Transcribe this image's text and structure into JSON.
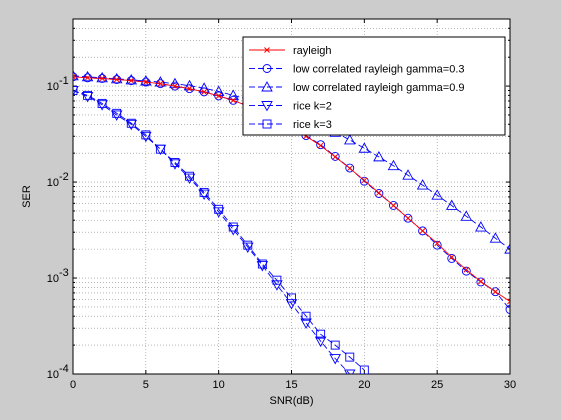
{
  "chart_data": {
    "type": "line",
    "xlabel": "SNR(dB)",
    "ylabel": "SER",
    "xlim": [
      0,
      30
    ],
    "ylim": [
      0.0001,
      0.5
    ],
    "yscale": "log",
    "grid": "on (major and minor, dotted)",
    "legend_location": "top-right",
    "x_ticks": [
      0,
      5,
      10,
      15,
      20,
      25,
      30
    ],
    "x_tick_labels": [
      "0",
      "5",
      "10",
      "15",
      "20",
      "25",
      "30"
    ],
    "y_ticks": [
      0.0001,
      0.001,
      0.01,
      0.1
    ],
    "y_tick_labels": [
      {
        "base": "10",
        "exp": "-4"
      },
      {
        "base": "10",
        "exp": "-3"
      },
      {
        "base": "10",
        "exp": "-2"
      },
      {
        "base": "10",
        "exp": "-1"
      }
    ],
    "series": [
      {
        "name": "rayleigh",
        "color": "#ff0000",
        "line_style": "solid",
        "marker": "x",
        "x": [
          0,
          1,
          2,
          3,
          4,
          5,
          6,
          7,
          8,
          9,
          10,
          11,
          12,
          13,
          14,
          15,
          16,
          17,
          18,
          19,
          20,
          21,
          22,
          23,
          24,
          25,
          26,
          27,
          28,
          29,
          30
        ],
        "y": [
          0.125,
          0.122,
          0.12,
          0.117,
          0.114,
          0.11,
          0.106,
          0.1,
          0.094,
          0.087,
          0.079,
          0.071,
          0.062,
          0.053,
          0.045,
          0.0375,
          0.03,
          0.024,
          0.0183,
          0.0139,
          0.0104,
          0.0077,
          0.0057,
          0.0042,
          0.0031,
          0.0023,
          0.00165,
          0.00122,
          0.00092,
          0.00072,
          0.00057
        ]
      },
      {
        "name": "low correlated rayleigh gamma=0.3",
        "color": "#0000ff",
        "line_style": "dashed",
        "marker": "o",
        "x": [
          0,
          1,
          2,
          3,
          4,
          5,
          6,
          7,
          8,
          9,
          10,
          11,
          12,
          13,
          14,
          15,
          16,
          17,
          18,
          19,
          20,
          21,
          22,
          23,
          24,
          25,
          26,
          27,
          28,
          29,
          30
        ],
        "y": [
          0.125,
          0.122,
          0.12,
          0.117,
          0.114,
          0.11,
          0.106,
          0.1,
          0.094,
          0.087,
          0.079,
          0.071,
          0.062,
          0.053,
          0.045,
          0.0375,
          0.0305,
          0.0245,
          0.0185,
          0.014,
          0.0102,
          0.0076,
          0.0057,
          0.0042,
          0.0031,
          0.0022,
          0.0016,
          0.00118,
          0.00091,
          0.00072,
          0.00047
        ]
      },
      {
        "name": "low correlated rayleigh gamma=0.9",
        "color": "#0000ff",
        "line_style": "dashed",
        "marker": "^",
        "x": [
          0,
          1,
          2,
          3,
          4,
          5,
          6,
          7,
          8,
          9,
          10,
          11,
          12,
          13,
          14,
          15,
          16,
          17,
          18,
          19,
          20,
          21,
          22,
          23,
          24,
          25,
          26,
          27,
          28,
          29,
          30
        ],
        "y": [
          0.128,
          0.125,
          0.122,
          0.119,
          0.116,
          0.113,
          0.11,
          0.106,
          0.101,
          0.095,
          0.088,
          0.08,
          0.073,
          0.065,
          0.058,
          0.051,
          0.045,
          0.039,
          0.033,
          0.0275,
          0.0225,
          0.0183,
          0.0148,
          0.0118,
          0.0093,
          0.0073,
          0.0057,
          0.0044,
          0.0034,
          0.0026,
          0.002
        ]
      },
      {
        "name": "rice k=2",
        "color": "#0000ff",
        "line_style": "dashed",
        "marker": "v",
        "x": [
          0,
          1,
          2,
          3,
          4,
          5,
          6,
          7,
          8,
          9,
          10,
          11,
          12,
          13,
          14,
          15,
          16,
          17,
          18,
          19,
          20
        ],
        "y": [
          0.09,
          0.078,
          0.064,
          0.05,
          0.04,
          0.03,
          0.022,
          0.0155,
          0.011,
          0.0075,
          0.0049,
          0.0032,
          0.0021,
          0.00135,
          0.00085,
          0.00054,
          0.00034,
          0.00022,
          0.000145,
          0.0001,
          7e-05
        ]
      },
      {
        "name": "rice k=3",
        "color": "#0000ff",
        "line_style": "dashed",
        "marker": "s",
        "x": [
          0,
          1,
          2,
          3,
          4,
          5,
          6,
          7,
          8,
          9,
          10,
          11,
          12,
          13,
          14,
          15,
          16,
          17,
          18,
          19,
          20
        ],
        "y": [
          0.09,
          0.08,
          0.066,
          0.052,
          0.041,
          0.031,
          0.022,
          0.016,
          0.0115,
          0.0078,
          0.0052,
          0.0034,
          0.0022,
          0.0014,
          0.00095,
          0.00062,
          0.0004,
          0.00026,
          0.0002,
          0.00015,
          0.00011
        ]
      }
    ]
  }
}
